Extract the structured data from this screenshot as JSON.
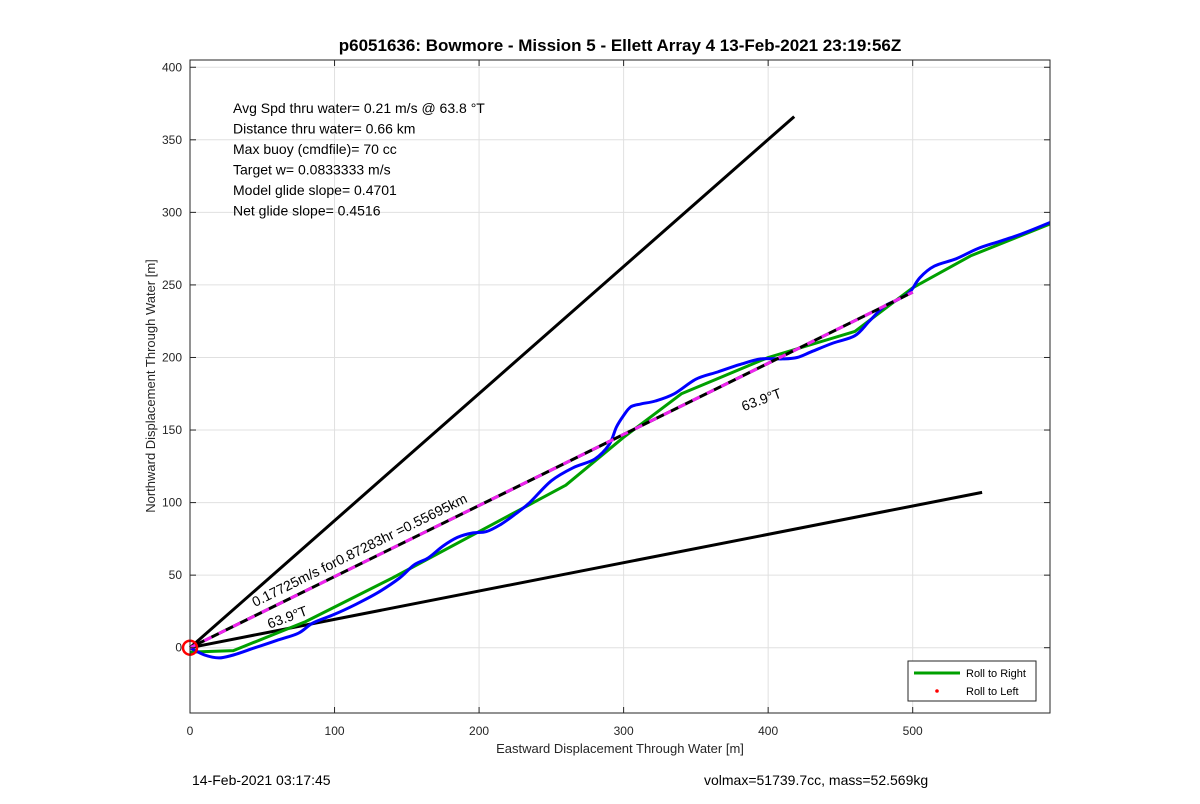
{
  "chart_data": {
    "type": "line",
    "title": "p6051636: Bowmore - Mission 5 - Ellett Array 4 13-Feb-2021 23:19:56Z",
    "xlabel": "Eastward Displacement Through Water [m]",
    "ylabel": "Northward Displacement Through Water [m]",
    "xlim": [
      0,
      595
    ],
    "ylim": [
      -45,
      405
    ],
    "x_ticks": [
      0,
      100,
      200,
      300,
      400,
      500
    ],
    "y_ticks": [
      0,
      50,
      100,
      150,
      200,
      250,
      300,
      350,
      400
    ],
    "grid": true,
    "legend_placement": "bottom-right",
    "legend": [
      {
        "label": "Roll to Right",
        "color": "#00a000",
        "marker": "line"
      },
      {
        "label": "Roll to Left",
        "color": "#ff0000",
        "marker": "dot"
      }
    ],
    "stats": [
      "Avg Spd thru water=  0.21 m/s @  63.8 °T",
      "Distance thru water=  0.66 km",
      "Max buoy (cmdfile)= 70 cc",
      "Target w= 0.0833333 m/s",
      "Model glide slope= 0.4701",
      "Net glide slope= 0.4516"
    ],
    "annotations": [
      {
        "text": "0.17725m/s for0.87283hr =0.55695km",
        "x": 45,
        "y": 28,
        "angle_deg": 26.3
      },
      {
        "text": "63.9°T",
        "x": 55,
        "y": 13,
        "angle_deg": 20
      },
      {
        "text": "63.9°T",
        "x": 383,
        "y": 163,
        "angle_deg": 20
      }
    ],
    "series": [
      {
        "id": "upper-bound",
        "color": "#000000",
        "x": [
          0,
          418
        ],
        "y": [
          0,
          366
        ]
      },
      {
        "id": "lower-bound",
        "color": "#000000",
        "x": [
          0,
          548
        ],
        "y": [
          0,
          107
        ]
      },
      {
        "id": "track-fit",
        "color": "#00a000",
        "x": [
          0,
          30,
          80,
          140,
          200,
          260,
          300,
          340,
          400,
          460,
          500,
          540,
          595
        ],
        "y": [
          -3,
          -2,
          18,
          48,
          80,
          112,
          145,
          175,
          200,
          218,
          248,
          270,
          292
        ]
      },
      {
        "id": "blue-track",
        "color": "#0000ff",
        "x": [
          0,
          10,
          20,
          30,
          45,
          60,
          75,
          85,
          100,
          115,
          130,
          145,
          155,
          165,
          175,
          185,
          195,
          205,
          215,
          225,
          235,
          250,
          265,
          280,
          290,
          295,
          300,
          305,
          312,
          322,
          335,
          350,
          365,
          380,
          395,
          410,
          420,
          430,
          445,
          460,
          470,
          480,
          490,
          498,
          505,
          515,
          530,
          545,
          560,
          575,
          595
        ],
        "y": [
          0,
          -5,
          -7,
          -5,
          0,
          5,
          10,
          17,
          23,
          30,
          38,
          48,
          57,
          62,
          70,
          76,
          79,
          80,
          85,
          92,
          100,
          115,
          124,
          130,
          140,
          152,
          160,
          166,
          168,
          170,
          175,
          185,
          190,
          195,
          199,
          199,
          200,
          204,
          210,
          215,
          225,
          235,
          240,
          245,
          255,
          263,
          268,
          275,
          280,
          285,
          293
        ]
      },
      {
        "id": "dashed-net",
        "color": "#000000",
        "dash_color": "#ee22ee",
        "x": [
          0,
          500
        ],
        "y": [
          0,
          245
        ]
      }
    ],
    "start_marker": {
      "x": 0,
      "y": 0,
      "color": "#ff0000"
    }
  },
  "footer": {
    "left": "14-Feb-2021 03:17:45",
    "right": "volmax=51739.7cc, mass=52.569kg"
  }
}
